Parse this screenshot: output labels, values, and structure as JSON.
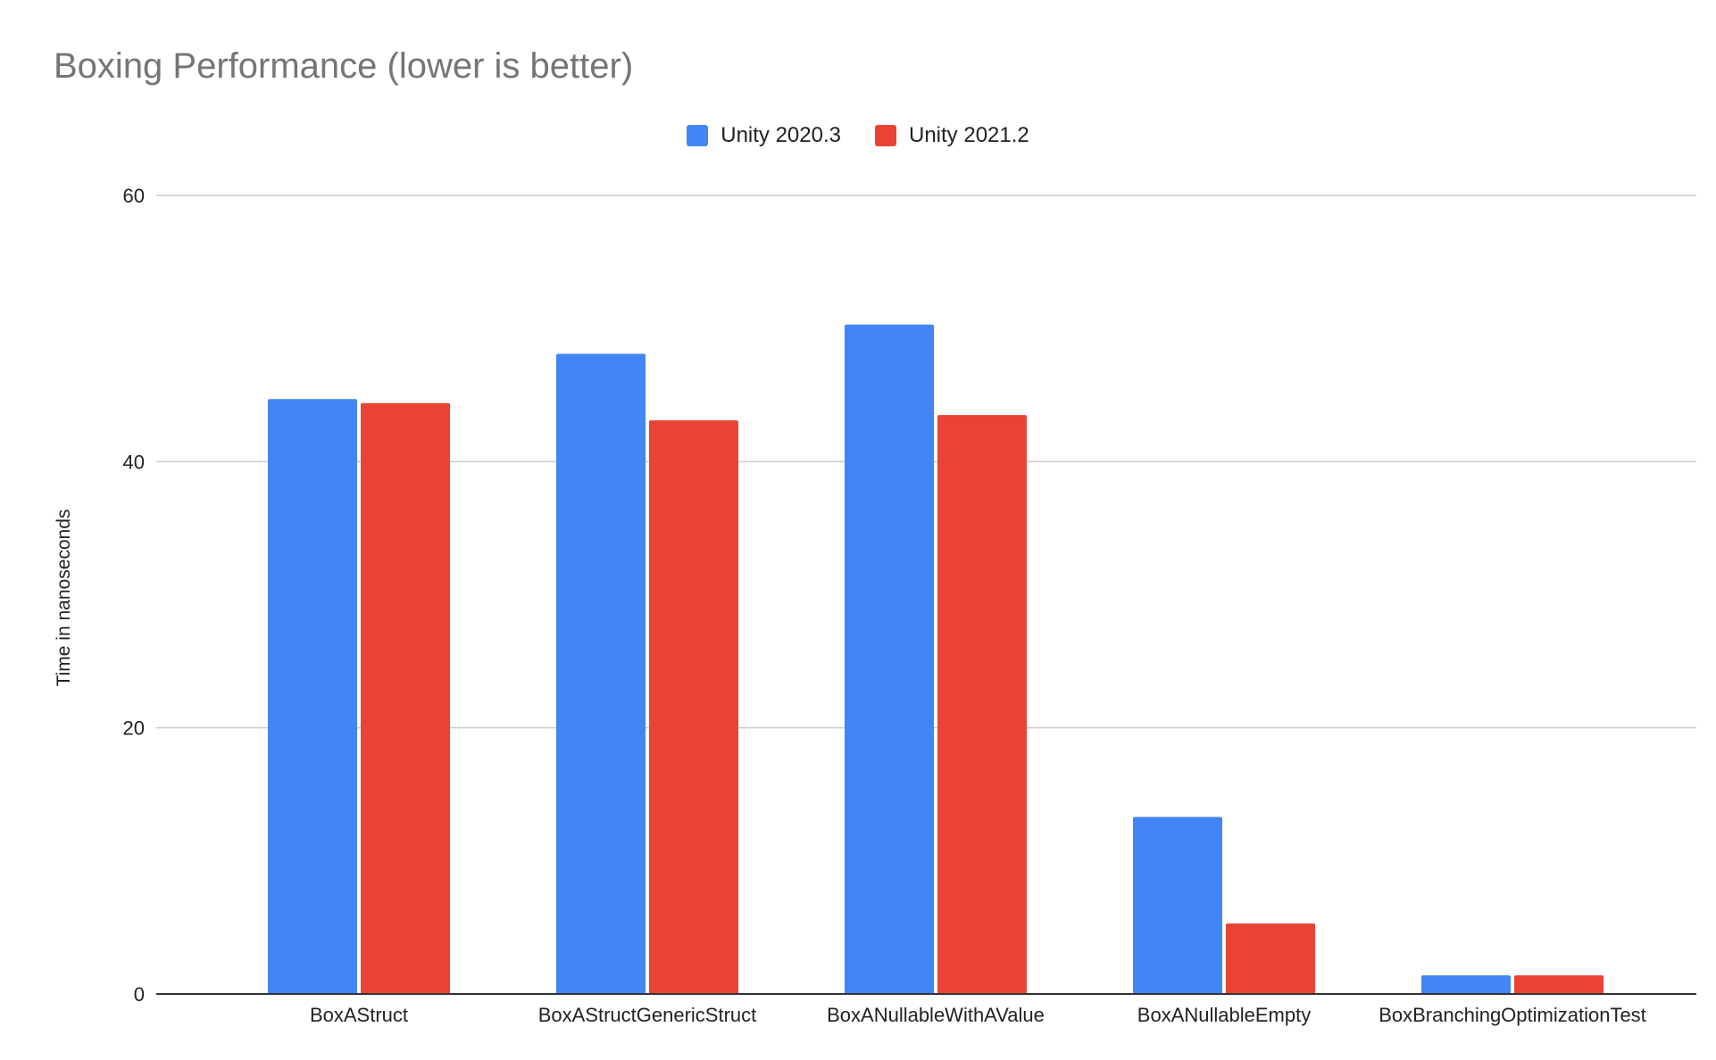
{
  "chart_data": {
    "type": "bar",
    "title": "Boxing Performance (lower is better)",
    "xlabel": "",
    "ylabel": "Time in nanoseconds",
    "ylim": [
      0,
      60
    ],
    "yticks": [
      0,
      20,
      40,
      60
    ],
    "grid": true,
    "legend_position": "top-center",
    "categories": [
      "BoxAStruct",
      "BoxAStructGenericStruct",
      "BoxANullableWithAValue",
      "BoxANullableEmpty",
      "BoxBranchingOptimizationTest"
    ],
    "series": [
      {
        "name": "Unity 2020.3",
        "color": "#4285F4",
        "values": [
          44.7,
          48.1,
          50.3,
          13.3,
          1.4
        ]
      },
      {
        "name": "Unity 2021.2",
        "color": "#EA4335",
        "values": [
          44.4,
          43.1,
          43.5,
          5.3,
          1.4
        ]
      }
    ]
  }
}
